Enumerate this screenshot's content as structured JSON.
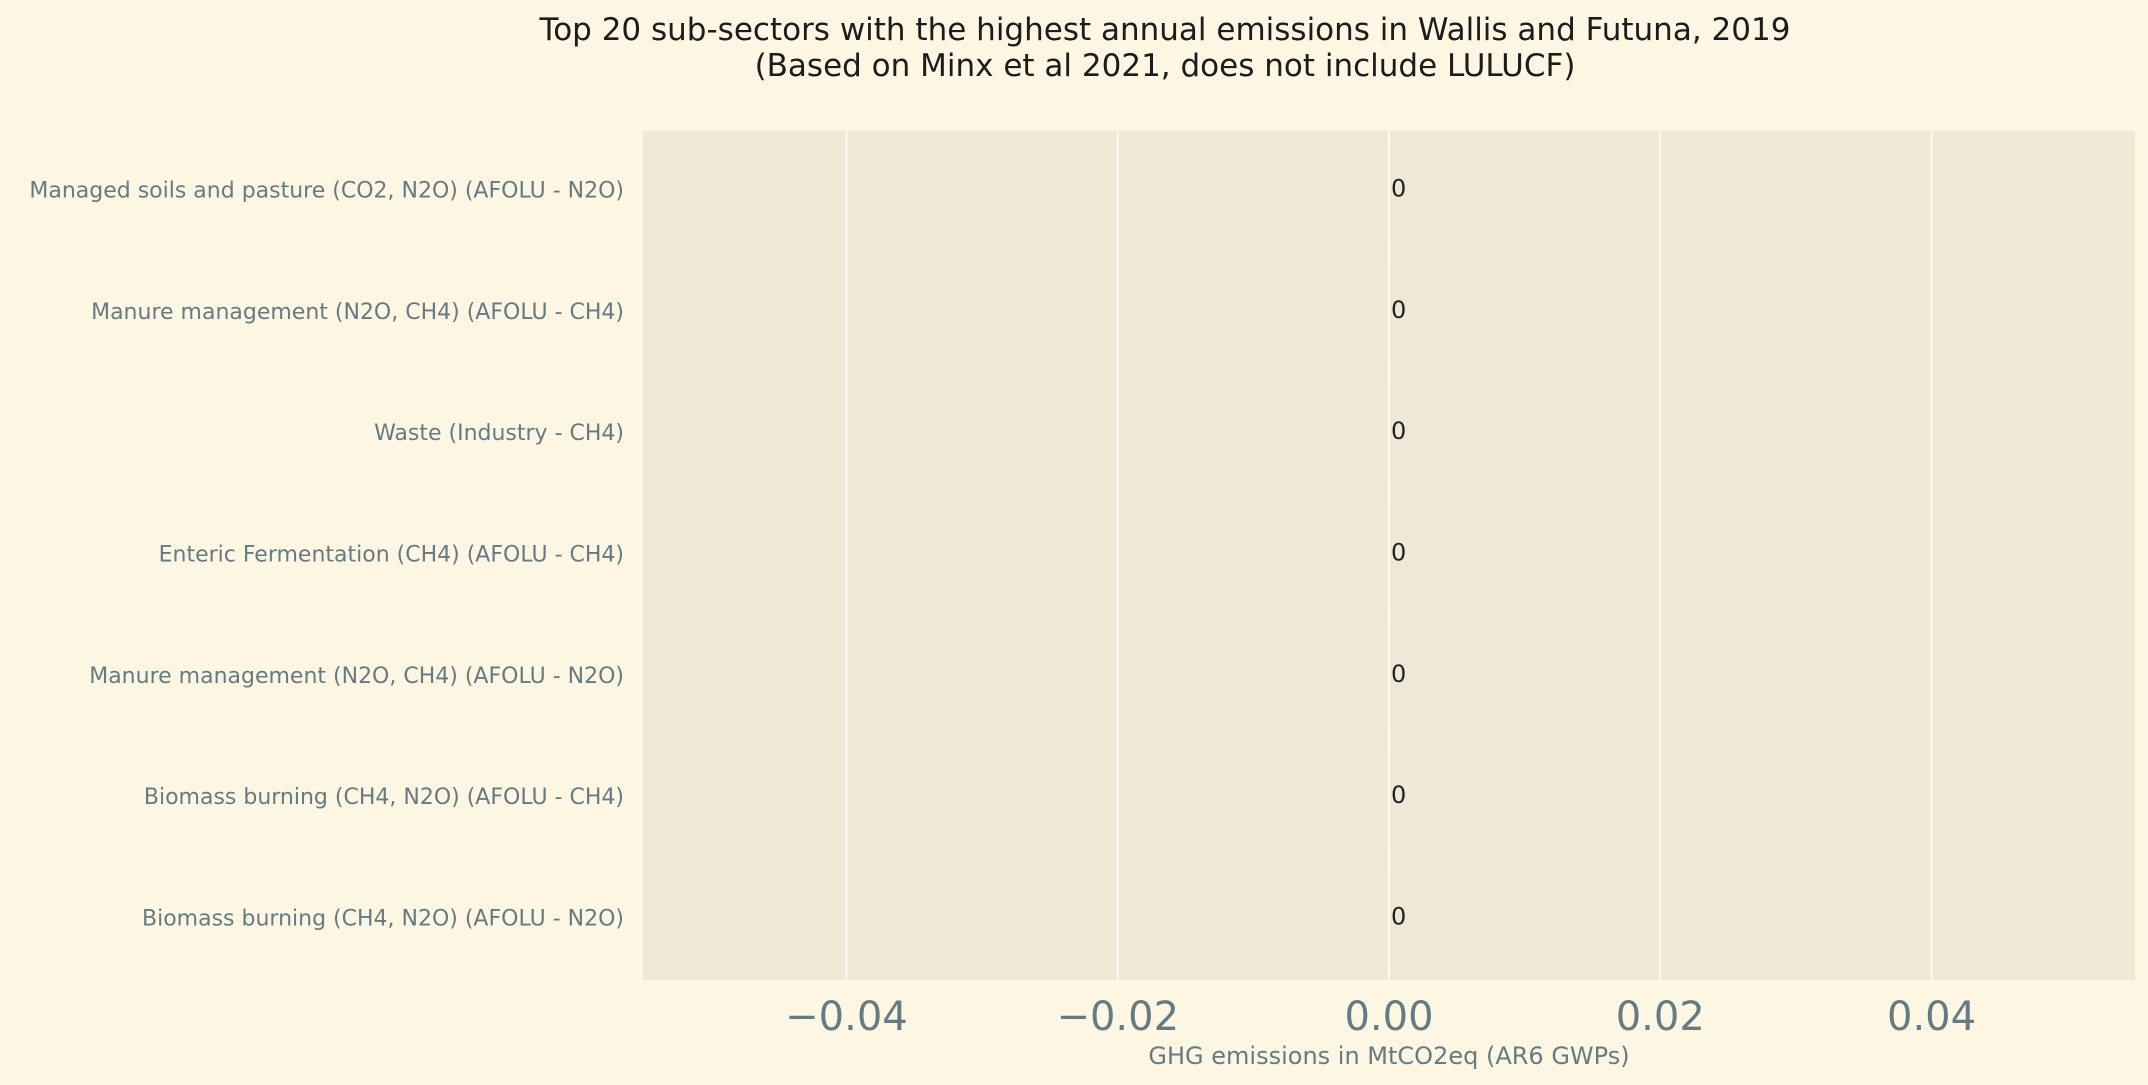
{
  "chart_data": {
    "type": "bar",
    "orientation": "horizontal",
    "title": "Top 20 sub-sectors with the highest annual emissions in Wallis and Futuna, 2019",
    "subtitle": "(Based on Minx et al 2021, does not include LULUCF)",
    "xlabel": "GHG emissions in MtCO2eq (AR6 GWPs)",
    "ylabel": "",
    "categories": [
      "Managed soils and pasture (CO2, N2O) (AFOLU - N2O)",
      "Manure management (N2O, CH4) (AFOLU - CH4)",
      "Waste (Industry - CH4)",
      "Enteric Fermentation (CH4) (AFOLU - CH4)",
      "Manure management (N2O, CH4) (AFOLU - N2O)",
      "Biomass burning (CH4, N2O) (AFOLU - CH4)",
      "Biomass burning (CH4, N2O) (AFOLU - N2O)"
    ],
    "values": [
      0,
      0,
      0,
      0,
      0,
      0,
      0
    ],
    "data_labels": [
      "0",
      "0",
      "0",
      "0",
      "0",
      "0",
      "0"
    ],
    "xlim": [
      -0.055,
      0.055
    ],
    "xticks": [
      -0.04,
      -0.02,
      0.0,
      0.02,
      0.04
    ],
    "xtick_labels": [
      "−0.04",
      "−0.02",
      "0.00",
      "0.02",
      "0.04"
    ],
    "grid": true,
    "colors": {
      "background": "#fdf6e3",
      "plot_area": "#efe8d6",
      "grid": "#fdfaf2",
      "bar": "#1f77b4",
      "title": "#1c1c1c",
      "axis_text": "#657b83"
    }
  }
}
